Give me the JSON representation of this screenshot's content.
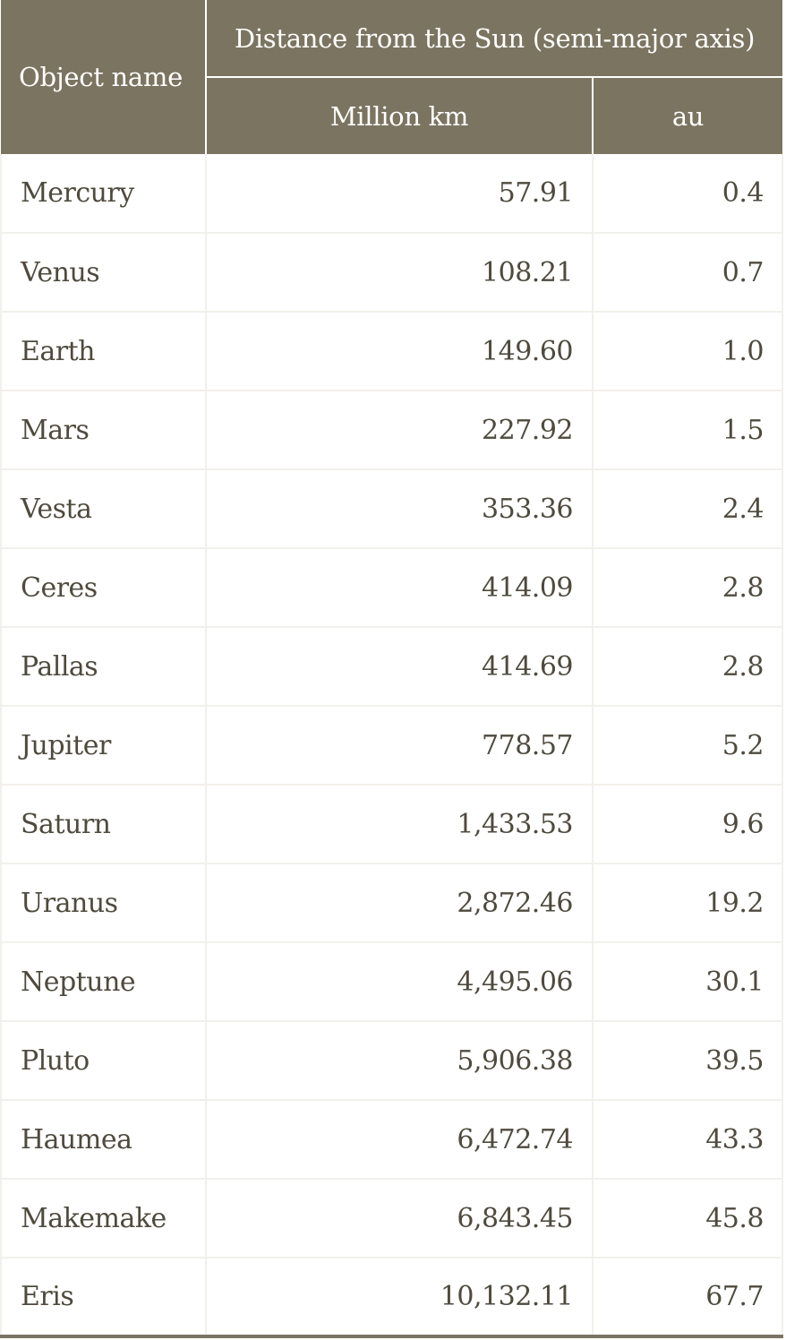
{
  "header": {
    "object_name": "Object name",
    "distance_group": "Distance from the Sun (semi-major axis)",
    "million_km": "Million km",
    "au": "au"
  },
  "rows": [
    {
      "name": "Mercury",
      "million_km": "57.91",
      "au": "0.4"
    },
    {
      "name": "Venus",
      "million_km": "108.21",
      "au": "0.7"
    },
    {
      "name": "Earth",
      "million_km": "149.60",
      "au": "1.0"
    },
    {
      "name": "Mars",
      "million_km": "227.92",
      "au": "1.5"
    },
    {
      "name": "Vesta",
      "million_km": "353.36",
      "au": "2.4"
    },
    {
      "name": "Ceres",
      "million_km": "414.09",
      "au": "2.8"
    },
    {
      "name": "Pallas",
      "million_km": "414.69",
      "au": "2.8"
    },
    {
      "name": "Jupiter",
      "million_km": "778.57",
      "au": "5.2"
    },
    {
      "name": "Saturn",
      "million_km": "1,433.53",
      "au": "9.6"
    },
    {
      "name": "Uranus",
      "million_km": "2,872.46",
      "au": "19.2"
    },
    {
      "name": "Neptune",
      "million_km": "4,495.06",
      "au": "30.1"
    },
    {
      "name": "Pluto",
      "million_km": "5,906.38",
      "au": "39.5"
    },
    {
      "name": "Haumea",
      "million_km": "6,472.74",
      "au": "43.3"
    },
    {
      "name": "Makemake",
      "million_km": "6,843.45",
      "au": "45.8"
    },
    {
      "name": "Eris",
      "million_km": "10,132.11",
      "au": "67.7"
    }
  ],
  "colors": {
    "header_bg": "#7b7461",
    "header_text": "#ffffff",
    "body_text": "#4f4a3d",
    "grid_line": "#f2f0ec"
  }
}
